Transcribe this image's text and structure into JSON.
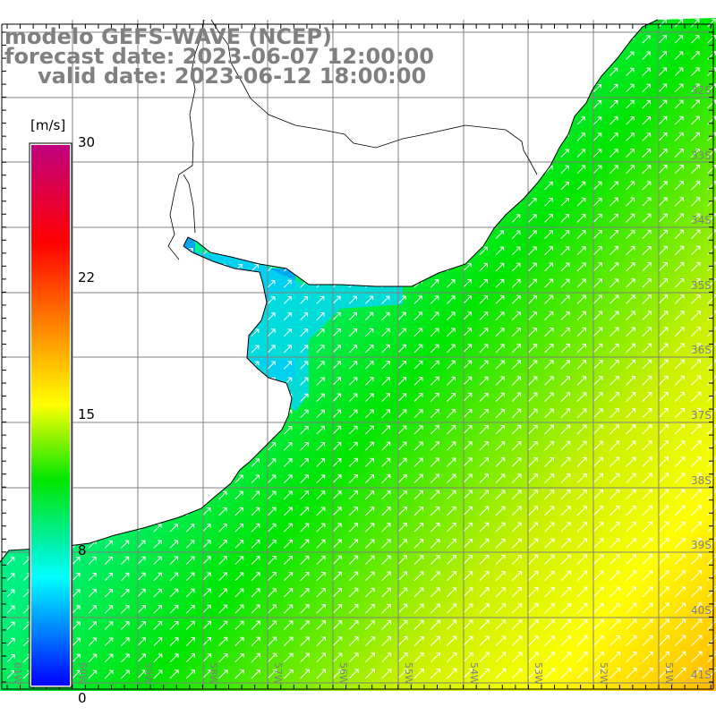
{
  "title": {
    "line1": "modelo GEFS-WAVE (NCEP)",
    "line2": "forecast date: 2023-06-07 12:00:00",
    "line3": "valid date: 2023-06-12 18:00:00"
  },
  "colorbar": {
    "unit": "[m/s]",
    "ticks": [
      "30",
      "22",
      "15",
      "8",
      "0"
    ],
    "colors": [
      "#c0007f",
      "#ff0000",
      "#ff8000",
      "#ffff00",
      "#00e600",
      "#00ffff",
      "#0000ff"
    ]
  },
  "axes": {
    "longitudes": [
      "61W",
      "60W",
      "59W",
      "58W",
      "57W",
      "56W",
      "55W",
      "54W",
      "53W",
      "52W",
      "51W"
    ],
    "latitudes": [
      "32S",
      "33S",
      "34S",
      "35S",
      "36S",
      "37S",
      "38S",
      "39S",
      "40S",
      "41S"
    ]
  },
  "field": {
    "variable": "wind speed",
    "arrow_direction": "north-east",
    "colors": {
      "low": "#00f0c8",
      "mid": "#00e600",
      "high": "#ffff00",
      "max": "#ffb000",
      "estuary": "#00a8f0"
    }
  }
}
